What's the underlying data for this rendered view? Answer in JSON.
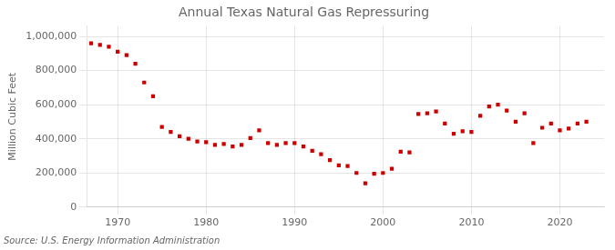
{
  "chart_data": {
    "type": "scatter",
    "title": "Annual Texas Natural Gas Repressuring",
    "ylabel": "Million Cubic Feet",
    "annotations": [
      "Source: U.S. Energy Information Administration"
    ],
    "x": [
      1967,
      1968,
      1969,
      1970,
      1971,
      1972,
      1973,
      1974,
      1975,
      1976,
      1977,
      1978,
      1979,
      1980,
      1981,
      1982,
      1983,
      1984,
      1985,
      1986,
      1987,
      1988,
      1989,
      1990,
      1991,
      1992,
      1993,
      1994,
      1995,
      1996,
      1997,
      1998,
      1999,
      2000,
      2001,
      2002,
      2003,
      2004,
      2005,
      2006,
      2007,
      2008,
      2009,
      2010,
      2011,
      2012,
      2013,
      2014,
      2015,
      2016,
      2017,
      2018,
      2019,
      2020,
      2021,
      2022,
      2023
    ],
    "values": [
      960000,
      950000,
      940000,
      910000,
      890000,
      840000,
      730000,
      650000,
      470000,
      440000,
      415000,
      400000,
      385000,
      380000,
      365000,
      370000,
      355000,
      365000,
      405000,
      450000,
      375000,
      365000,
      375000,
      375000,
      355000,
      330000,
      310000,
      275000,
      245000,
      240000,
      200000,
      140000,
      195000,
      200000,
      225000,
      325000,
      320000,
      545000,
      550000,
      560000,
      490000,
      430000,
      445000,
      440000,
      535000,
      590000,
      600000,
      565000,
      500000,
      550000,
      375000,
      465000,
      490000,
      450000,
      460000,
      490000,
      500000
    ],
    "color": "#cc0000",
    "marker": "square",
    "xlim": [
      1966.5,
      2025
    ],
    "xticks": [
      1970,
      1980,
      1990,
      2000,
      2010,
      2020
    ],
    "ylim": [
      0,
      1060000
    ],
    "yticks": [
      0,
      {
        "value": 200000,
        "label": "200,000"
      },
      {
        "value": 400000,
        "label": "400,000"
      },
      {
        "value": 600000,
        "label": "600,000"
      },
      {
        "value": 800000,
        "label": "800,000"
      },
      {
        "value": 1000000,
        "label": "1,000,000"
      }
    ],
    "grid": true
  }
}
